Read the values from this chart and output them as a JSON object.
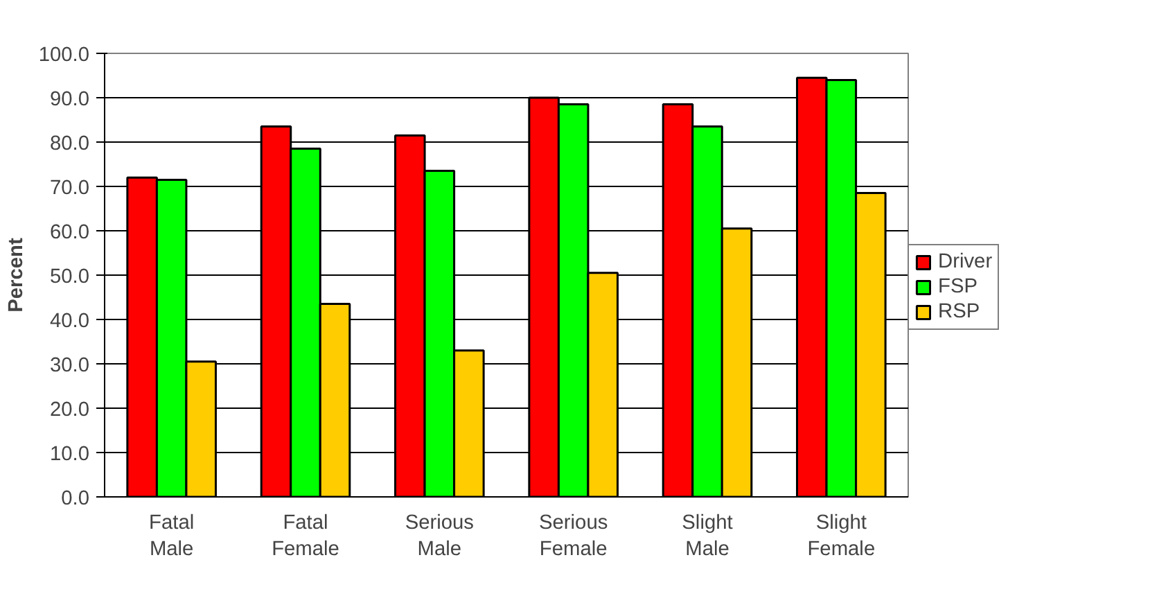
{
  "chart_data": {
    "type": "bar",
    "ylabel": "Percent",
    "categories": [
      "Fatal\nMale",
      "Fatal\nFemale",
      "Serious\nMale",
      "Serious\nFemale",
      "Slight\nMale",
      "Slight\nFemale"
    ],
    "series": [
      {
        "name": "Driver",
        "color": "#ff0000",
        "values": [
          72,
          83.5,
          81.5,
          90,
          88.5,
          94.5
        ]
      },
      {
        "name": "FSP",
        "color": "#00ff00",
        "values": [
          71.5,
          78.5,
          73.5,
          88.5,
          83.5,
          94
        ]
      },
      {
        "name": "RSP",
        "color": "#ffcc00",
        "values": [
          30.5,
          43.5,
          33,
          50.5,
          60.5,
          68.5
        ]
      }
    ],
    "ylim": [
      0,
      100
    ],
    "yticks": [
      {
        "value": 0,
        "label": "0.0"
      },
      {
        "value": 10,
        "label": "10.0"
      },
      {
        "value": 20,
        "label": "20.0"
      },
      {
        "value": 30,
        "label": "30.0"
      },
      {
        "value": 40,
        "label": "40.0"
      },
      {
        "value": 50,
        "label": "50.0"
      },
      {
        "value": 60,
        "label": "60.0"
      },
      {
        "value": 70,
        "label": "70.0"
      },
      {
        "value": 80,
        "label": "80.0"
      },
      {
        "value": 90,
        "label": "90.0"
      },
      {
        "value": 100,
        "label": "100.0"
      }
    ],
    "grid": "y",
    "legend": "right"
  }
}
